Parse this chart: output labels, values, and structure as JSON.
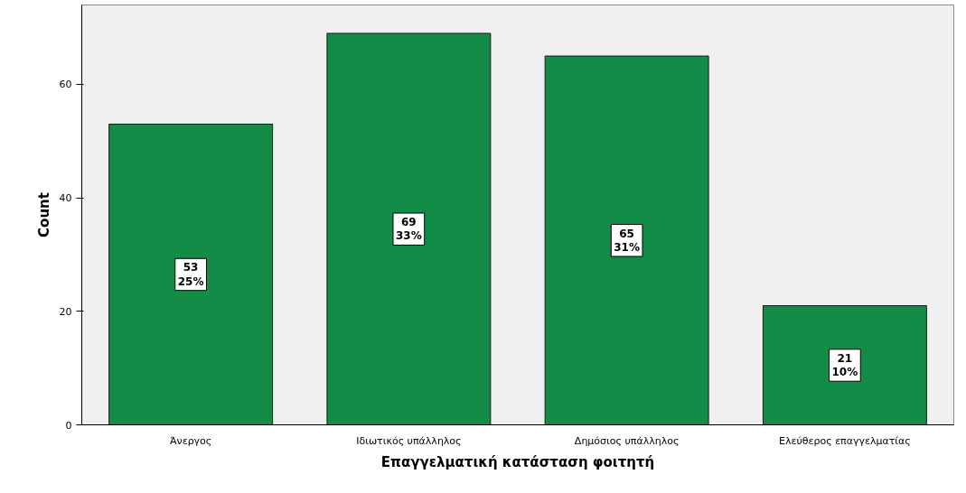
{
  "chart_data": {
    "type": "bar",
    "xlabel": "Επαγγελματική κατάσταση φοιτητή",
    "ylabel": "Count",
    "categories": [
      "Άνεργος",
      "Ιδιωτικός υπάλληλος",
      "Δημόσιος υπάλληλος",
      "Ελεύθερος επαγγελματίας"
    ],
    "values": [
      53,
      69,
      65,
      21
    ],
    "color": "#128c47",
    "value_labels": [
      "53\n25%",
      "69\n33%",
      "65\n31%",
      "21\n10%"
    ],
    "ylim": [
      0,
      74
    ],
    "yticks": [
      0,
      20,
      40,
      60
    ],
    "grid": false
  }
}
